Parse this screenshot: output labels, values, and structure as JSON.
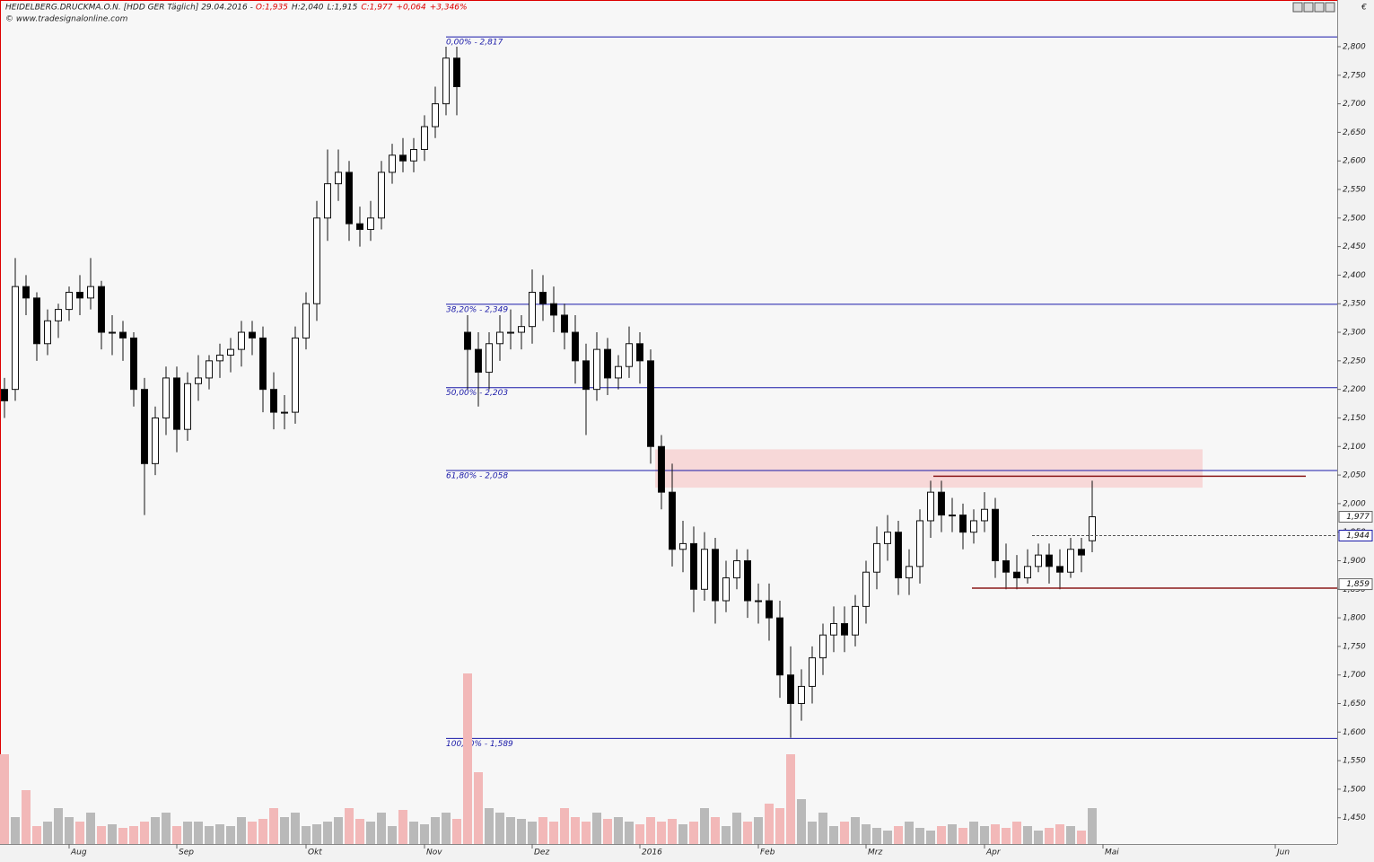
{
  "chart_data": {
    "type": "candlestick",
    "title": "HEIDELBERG.DRUCKMA.O.N. [HDD GER Täglich] 29.04.2016 -",
    "header_quote": [
      "O:1,935",
      "H:2,040",
      "L:1,915",
      "C:1,977",
      "+0,064",
      "+3,346%"
    ],
    "copyright": "© www.tradesignalonline.com",
    "currency": "€",
    "categories": [
      null,
      null,
      null,
      null,
      null,
      null,
      "Aug",
      null,
      null,
      null,
      null,
      null,
      null,
      null,
      null,
      null,
      "Sep",
      null,
      null,
      null,
      null,
      null,
      null,
      null,
      null,
      null,
      null,
      null,
      "Okt",
      null,
      null,
      null,
      null,
      null,
      null,
      null,
      null,
      null,
      null,
      "Nov",
      null,
      null,
      null,
      null,
      null,
      null,
      null,
      null,
      null,
      "Dez",
      null,
      null,
      null,
      null,
      null,
      null,
      null,
      null,
      null,
      "2016",
      null,
      null,
      null,
      null,
      null,
      null,
      null,
      null,
      null,
      null,
      "Feb",
      null,
      null,
      null,
      null,
      null,
      null,
      null,
      null,
      null,
      "Mrz",
      null,
      null,
      null,
      null,
      null,
      null,
      null,
      null,
      null,
      null,
      "Apr",
      null,
      null,
      null,
      null,
      null,
      null,
      null,
      null,
      null,
      null,
      "Mai",
      null,
      null,
      null,
      null,
      null,
      null,
      null,
      null,
      null,
      null,
      null,
      null,
      null,
      null,
      null,
      "Jun",
      null,
      null,
      null,
      null,
      null
    ],
    "open": [
      2.2,
      2.2,
      2.38,
      2.36,
      2.28,
      2.32,
      2.34,
      2.37,
      2.36,
      2.38,
      2.3,
      2.3,
      2.29,
      2.2,
      2.07,
      2.15,
      2.22,
      2.13,
      2.21,
      2.22,
      2.25,
      2.26,
      2.27,
      2.3,
      2.29,
      2.2,
      2.16,
      2.16,
      2.29,
      2.35,
      2.5,
      2.56,
      2.58,
      2.49,
      2.48,
      2.5,
      2.58,
      2.61,
      2.6,
      2.62,
      2.66,
      2.7,
      2.78,
      2.3,
      2.27,
      2.23,
      2.28,
      2.3,
      2.3,
      2.31,
      2.37,
      2.35,
      2.33,
      2.3,
      2.25,
      2.2,
      2.27,
      2.22,
      2.24,
      2.28,
      2.25,
      2.1,
      2.02,
      1.92,
      1.93,
      1.85,
      1.92,
      1.83,
      1.87,
      1.9,
      1.83,
      1.83,
      1.8,
      1.7,
      1.65,
      1.68,
      1.73,
      1.77,
      1.79,
      1.77,
      1.82,
      1.88,
      1.93,
      1.95,
      1.87,
      1.89,
      1.97,
      2.02,
      1.98,
      1.98,
      1.95,
      1.97,
      1.99,
      1.9,
      1.88,
      1.87,
      1.89,
      1.91,
      1.89,
      1.88,
      1.92,
      1.935,
      null,
      null,
      null,
      null,
      null,
      null,
      null,
      null,
      null,
      null,
      null,
      null,
      null,
      null,
      null,
      null,
      null,
      null,
      null,
      null,
      null,
      null
    ],
    "high": [
      2.22,
      2.43,
      2.4,
      2.37,
      2.34,
      2.35,
      2.38,
      2.4,
      2.43,
      2.39,
      2.33,
      2.32,
      2.3,
      2.22,
      2.17,
      2.24,
      2.24,
      2.23,
      2.26,
      2.26,
      2.28,
      2.29,
      2.32,
      2.32,
      2.31,
      2.23,
      2.19,
      2.31,
      2.37,
      2.53,
      2.62,
      2.62,
      2.6,
      2.52,
      2.53,
      2.6,
      2.63,
      2.64,
      2.64,
      2.68,
      2.73,
      2.8,
      2.8,
      2.33,
      2.3,
      2.3,
      2.33,
      2.34,
      2.33,
      2.41,
      2.4,
      2.38,
      2.35,
      2.33,
      2.28,
      2.3,
      2.29,
      2.26,
      2.31,
      2.3,
      2.27,
      2.12,
      2.07,
      1.97,
      1.96,
      1.95,
      1.94,
      1.9,
      1.92,
      1.92,
      1.86,
      1.86,
      1.83,
      1.75,
      1.71,
      1.75,
      1.79,
      1.82,
      1.82,
      1.84,
      1.9,
      1.96,
      1.98,
      1.97,
      1.92,
      1.99,
      2.04,
      2.04,
      2.01,
      2.0,
      1.99,
      2.02,
      2.01,
      1.93,
      1.91,
      1.92,
      1.93,
      1.93,
      1.92,
      1.94,
      1.94,
      2.04,
      null,
      null,
      null,
      null,
      null,
      null,
      null,
      null,
      null,
      null,
      null,
      null,
      null,
      null,
      null,
      null,
      null,
      null,
      null,
      null,
      null,
      null
    ],
    "low": [
      2.15,
      2.18,
      2.33,
      2.25,
      2.26,
      2.29,
      2.32,
      2.33,
      2.34,
      2.27,
      2.26,
      2.25,
      2.17,
      1.98,
      2.05,
      2.12,
      2.09,
      2.11,
      2.18,
      2.2,
      2.22,
      2.23,
      2.24,
      2.26,
      2.16,
      2.13,
      2.13,
      2.14,
      2.27,
      2.32,
      2.46,
      2.53,
      2.46,
      2.45,
      2.46,
      2.48,
      2.56,
      2.58,
      2.58,
      2.6,
      2.64,
      2.68,
      2.68,
      2.2,
      2.17,
      2.2,
      2.25,
      2.27,
      2.27,
      2.28,
      2.32,
      2.3,
      2.27,
      2.21,
      2.12,
      2.18,
      2.19,
      2.2,
      2.22,
      2.21,
      2.07,
      1.99,
      1.89,
      1.88,
      1.81,
      1.83,
      1.79,
      1.81,
      1.85,
      1.8,
      1.79,
      1.76,
      1.66,
      1.59,
      1.62,
      1.65,
      1.7,
      1.74,
      1.74,
      1.75,
      1.79,
      1.85,
      1.9,
      1.84,
      1.84,
      1.86,
      1.94,
      1.95,
      1.95,
      1.92,
      1.93,
      1.95,
      1.87,
      1.85,
      1.85,
      1.86,
      1.88,
      1.86,
      1.85,
      1.87,
      1.88,
      1.915,
      null,
      null,
      null,
      null,
      null,
      null,
      null,
      null,
      null,
      null,
      null,
      null,
      null,
      null,
      null,
      null,
      null,
      null,
      null,
      null,
      null,
      null
    ],
    "close": [
      2.18,
      2.38,
      2.36,
      2.28,
      2.32,
      2.34,
      2.37,
      2.36,
      2.38,
      2.3,
      2.3,
      2.29,
      2.2,
      2.07,
      2.15,
      2.22,
      2.13,
      2.21,
      2.22,
      2.25,
      2.26,
      2.27,
      2.3,
      2.29,
      2.2,
      2.16,
      2.16,
      2.29,
      2.35,
      2.5,
      2.56,
      2.58,
      2.49,
      2.48,
      2.5,
      2.58,
      2.61,
      2.6,
      2.62,
      2.66,
      2.7,
      2.78,
      2.73,
      2.27,
      2.23,
      2.28,
      2.3,
      2.3,
      2.31,
      2.37,
      2.35,
      2.33,
      2.3,
      2.25,
      2.2,
      2.27,
      2.22,
      2.24,
      2.28,
      2.25,
      2.1,
      2.02,
      1.92,
      1.93,
      1.85,
      1.92,
      1.83,
      1.87,
      1.9,
      1.83,
      1.83,
      1.8,
      1.7,
      1.65,
      1.68,
      1.73,
      1.77,
      1.79,
      1.77,
      1.82,
      1.88,
      1.93,
      1.95,
      1.87,
      1.89,
      1.97,
      2.02,
      1.98,
      1.98,
      1.95,
      1.97,
      1.99,
      1.9,
      1.88,
      1.87,
      1.89,
      1.91,
      1.89,
      1.88,
      1.92,
      1.91,
      1.977,
      null,
      null,
      null,
      null,
      null,
      null,
      null,
      null,
      null,
      null,
      null,
      null,
      null,
      null,
      null,
      null,
      null,
      null,
      null,
      null,
      null,
      null
    ],
    "volume": [
      100,
      30,
      60,
      20,
      25,
      40,
      30,
      25,
      35,
      20,
      22,
      18,
      20,
      25,
      30,
      35,
      20,
      25,
      25,
      20,
      22,
      20,
      30,
      25,
      28,
      40,
      30,
      35,
      20,
      22,
      25,
      30,
      40,
      28,
      25,
      35,
      20,
      38,
      25,
      22,
      30,
      35,
      28,
      190,
      80,
      40,
      35,
      30,
      28,
      25,
      30,
      25,
      40,
      30,
      25,
      35,
      28,
      30,
      25,
      22,
      30,
      25,
      28,
      22,
      25,
      40,
      30,
      20,
      35,
      25,
      30,
      45,
      40,
      100,
      50,
      25,
      35,
      20,
      25,
      30,
      22,
      18,
      15,
      20,
      25,
      18,
      15,
      20,
      22,
      18,
      25,
      20,
      22,
      18,
      25,
      20,
      15,
      18,
      22,
      20,
      15,
      40,
      null,
      null,
      null,
      null,
      null,
      null,
      null,
      null,
      null,
      null,
      null,
      null,
      null,
      null,
      null,
      null,
      null,
      null,
      null,
      null,
      null,
      null
    ],
    "up_color": "#ffffff",
    "down_color": "#000000",
    "volume_up_color": "#b9b9b9",
    "volume_down_color": "#f2b8b8",
    "ylim": [
      1.404,
      2.866
    ],
    "yticks": [
      {
        "value": 1.45,
        "label": "1,450"
      },
      {
        "value": 1.5,
        "label": "1,500"
      },
      {
        "value": 1.55,
        "label": "1,550"
      },
      {
        "value": 1.6,
        "label": "1,600"
      },
      {
        "value": 1.65,
        "label": "1,650"
      },
      {
        "value": 1.7,
        "label": "1,700"
      },
      {
        "value": 1.75,
        "label": "1,750"
      },
      {
        "value": 1.8,
        "label": "1,800"
      },
      {
        "value": 1.85,
        "label": "1,850"
      },
      {
        "value": 1.9,
        "label": "1,900"
      },
      {
        "value": 1.95,
        "label": "1,950"
      },
      {
        "value": 2,
        "label": "2,000"
      },
      {
        "value": 2.05,
        "label": "2,050"
      },
      {
        "value": 2.1,
        "label": "2,100"
      },
      {
        "value": 2.15,
        "label": "2,150"
      },
      {
        "value": 2.2,
        "label": "2,200"
      },
      {
        "value": 2.25,
        "label": "2,250"
      },
      {
        "value": 2.3,
        "label": "2,300"
      },
      {
        "value": 2.35,
        "label": "2,350"
      },
      {
        "value": 2.4,
        "label": "2,400"
      },
      {
        "value": 2.45,
        "label": "2,450"
      },
      {
        "value": 2.5,
        "label": "2,500"
      },
      {
        "value": 2.55,
        "label": "2,550"
      },
      {
        "value": 2.6,
        "label": "2,600"
      },
      {
        "value": 2.65,
        "label": "2,650"
      },
      {
        "value": 2.7,
        "label": "2,700"
      },
      {
        "value": 2.75,
        "label": "2,750"
      },
      {
        "value": 2.8,
        "label": "2,800"
      }
    ],
    "fib_levels": [
      {
        "value": 2.817,
        "label": "0,00% - 2,817"
      },
      {
        "value": 2.349,
        "label": "38,20% - 2,349"
      },
      {
        "value": 2.203,
        "label": "50,00% - 2,203"
      },
      {
        "value": 2.058,
        "label": "61,80% - 2,058"
      },
      {
        "value": 1.589,
        "label": "100,00% - 1,589"
      }
    ],
    "fib_color": "#1a1aa8",
    "zone": [
      2.028,
      2.095
    ],
    "zone_color": "#f6d0d0",
    "resistance": 2.048,
    "support": 1.852,
    "level_color": "#8b1a1a",
    "dashed_level": 1.944,
    "price_tags": [
      {
        "value": 1.977,
        "label": "1,977"
      },
      {
        "value": 1.944,
        "label": "1,944"
      },
      {
        "value": 1.859,
        "label": "1,859"
      }
    ]
  }
}
